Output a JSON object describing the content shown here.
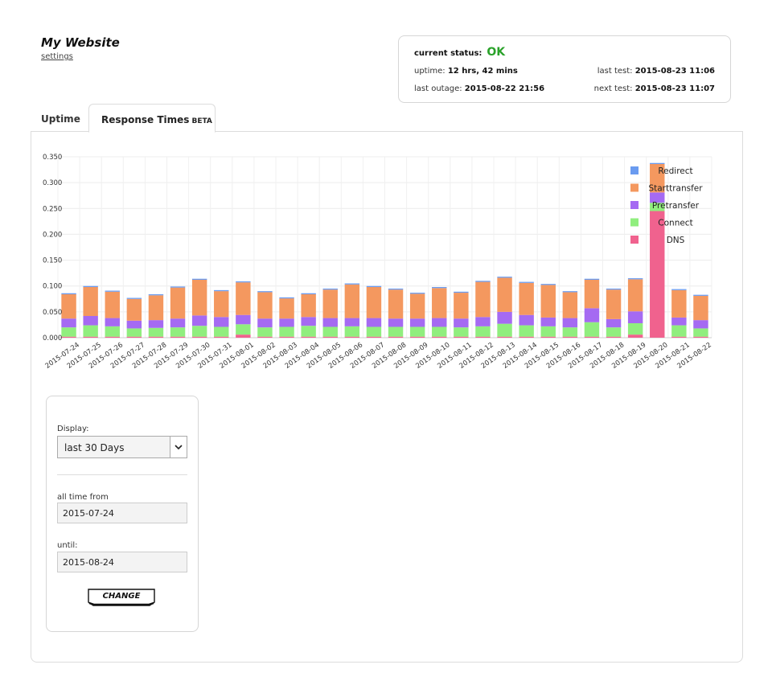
{
  "header": {
    "site_title": "My Website",
    "settings_label": "settings"
  },
  "status": {
    "current_label": "current status:",
    "current_value": "OK",
    "uptime_label": "uptime:",
    "uptime_value": "12 hrs, 42 mins",
    "last_test_label": "last test:",
    "last_test_value": "2015-08-23 11:06",
    "last_outage_label": "last outage:",
    "last_outage_value": "2015-08-22 21:56",
    "next_test_label": "next test:",
    "next_test_value": "2015-08-23 11:07"
  },
  "tabs": {
    "uptime": "Uptime",
    "response_times": "Response Times",
    "beta": "BETA"
  },
  "form": {
    "display_label": "Display:",
    "display_value": "last 30 Days",
    "from_label": "all time from",
    "from_value": "2015-07-24",
    "until_label": "until:",
    "until_value": "2015-08-24",
    "change_label": "CHANGE"
  },
  "colors": {
    "status_ok": "#2aa22a",
    "dns": "#f0628e",
    "connect": "#90ee7e",
    "pretransfer": "#a56af2",
    "starttransfer": "#f4985f",
    "redirect": "#6a9bf0"
  },
  "chart_data": {
    "type": "bar",
    "stacked": true,
    "ylim": [
      0,
      0.35
    ],
    "y_ticks": [
      "0.000",
      "0.050",
      "0.100",
      "0.150",
      "0.200",
      "0.250",
      "0.300",
      "0.350"
    ],
    "grid": true,
    "legend_position": "top-right",
    "categories": [
      "2015-07-24",
      "2015-07-25",
      "2015-07-26",
      "2015-07-27",
      "2015-07-28",
      "2015-07-29",
      "2015-07-30",
      "2015-07-31",
      "2015-08-01",
      "2015-08-02",
      "2015-08-03",
      "2015-08-04",
      "2015-08-05",
      "2015-08-06",
      "2015-08-07",
      "2015-08-08",
      "2015-08-09",
      "2015-08-10",
      "2015-08-11",
      "2015-08-12",
      "2015-08-13",
      "2015-08-14",
      "2015-08-15",
      "2015-08-16",
      "2015-08-17",
      "2015-08-18",
      "2015-08-19",
      "2015-08-20",
      "2015-08-21",
      "2015-08-22"
    ],
    "series": [
      {
        "name": "DNS",
        "color": "#f0628e",
        "values": [
          0.002,
          0.002,
          0.002,
          0.002,
          0.002,
          0.002,
          0.002,
          0.002,
          0.006,
          0.002,
          0.002,
          0.002,
          0.002,
          0.002,
          0.002,
          0.002,
          0.002,
          0.002,
          0.002,
          0.002,
          0.002,
          0.002,
          0.002,
          0.002,
          0.002,
          0.002,
          0.006,
          0.245,
          0.002,
          0.002
        ]
      },
      {
        "name": "Connect",
        "color": "#90ee7e",
        "values": [
          0.018,
          0.022,
          0.02,
          0.016,
          0.017,
          0.018,
          0.021,
          0.019,
          0.02,
          0.018,
          0.019,
          0.021,
          0.019,
          0.02,
          0.019,
          0.019,
          0.019,
          0.019,
          0.018,
          0.02,
          0.025,
          0.022,
          0.02,
          0.018,
          0.028,
          0.018,
          0.022,
          0.016,
          0.022,
          0.016
        ]
      },
      {
        "name": "Pretransfer",
        "color": "#a56af2",
        "values": [
          0.017,
          0.018,
          0.016,
          0.015,
          0.015,
          0.017,
          0.02,
          0.019,
          0.018,
          0.017,
          0.016,
          0.017,
          0.017,
          0.016,
          0.017,
          0.016,
          0.016,
          0.017,
          0.017,
          0.018,
          0.023,
          0.02,
          0.017,
          0.018,
          0.027,
          0.016,
          0.023,
          0.02,
          0.015,
          0.016
        ]
      },
      {
        "name": "Starttransfer",
        "color": "#f4985f",
        "values": [
          0.047,
          0.056,
          0.051,
          0.042,
          0.048,
          0.06,
          0.069,
          0.05,
          0.063,
          0.051,
          0.039,
          0.044,
          0.055,
          0.065,
          0.06,
          0.056,
          0.048,
          0.058,
          0.05,
          0.068,
          0.066,
          0.062,
          0.063,
          0.05,
          0.055,
          0.057,
          0.062,
          0.055,
          0.053,
          0.047
        ]
      },
      {
        "name": "Redirect",
        "color": "#6a9bf0",
        "values": [
          0.002,
          0.002,
          0.002,
          0.002,
          0.002,
          0.002,
          0.002,
          0.002,
          0.002,
          0.002,
          0.002,
          0.002,
          0.002,
          0.002,
          0.002,
          0.002,
          0.002,
          0.002,
          0.002,
          0.002,
          0.002,
          0.002,
          0.002,
          0.002,
          0.002,
          0.002,
          0.002,
          0.002,
          0.002,
          0.002
        ]
      }
    ]
  }
}
